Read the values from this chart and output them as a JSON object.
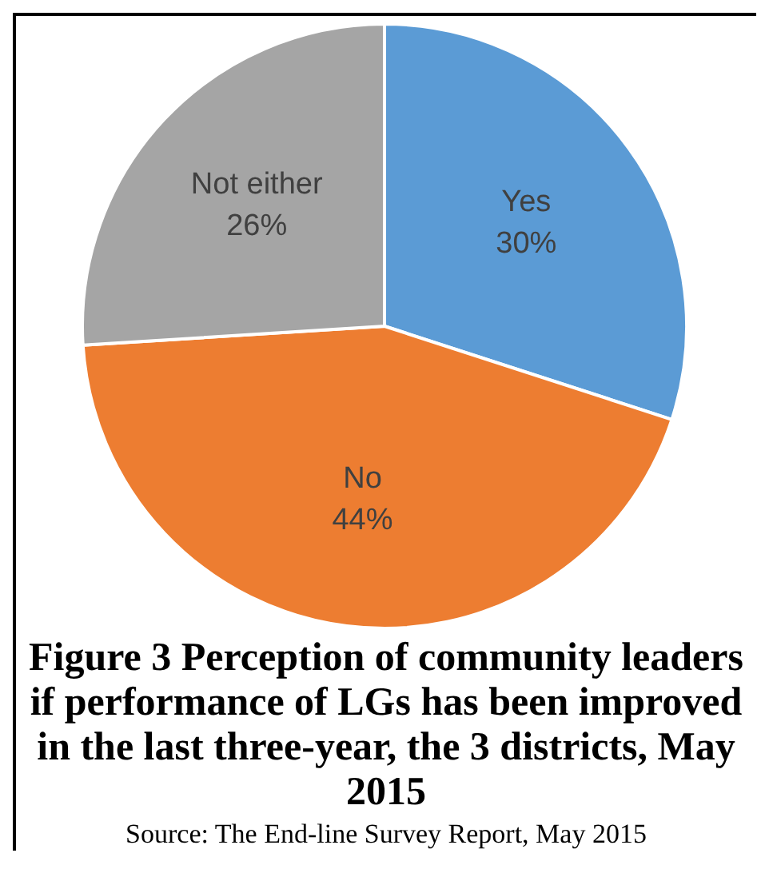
{
  "chart_data": {
    "type": "pie",
    "title": "Figure 3 Perception of community leaders if performance of LGs has been improved in the last three-year, the 3 districts, May 2015",
    "categories": [
      "Yes",
      "No",
      "Not either"
    ],
    "values": [
      30,
      44,
      26
    ],
    "colors": [
      "#5b9bd5",
      "#ed7d31",
      "#a5a5a5"
    ],
    "value_labels": [
      "30%",
      "44%",
      "26%"
    ],
    "legend": false,
    "annotations": [
      "Source: The End-line Survey Report, May 2015"
    ]
  }
}
